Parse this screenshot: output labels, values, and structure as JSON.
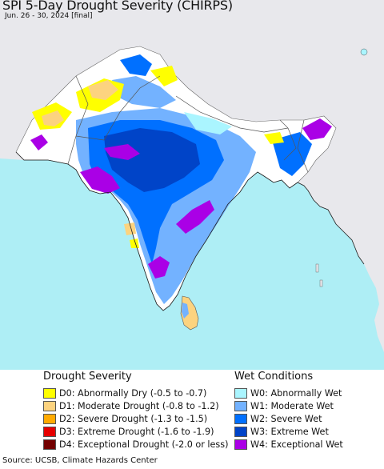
{
  "title": "SPI 5-Day Drought Severity (CHIRPS)",
  "subtitle": "Jun. 26 - 30, 2024 [final]",
  "colors": {
    "ocean": "#aeeef5",
    "land_neutral": "#ffffff",
    "land_outside": "#e8e8ec",
    "D0": "#ffff00",
    "D1": "#fcd37f",
    "D2": "#ffaa00",
    "D3": "#e60000",
    "D4": "#730000",
    "W0": "#aaf5ff",
    "W1": "#73b2ff",
    "W2": "#0070ff",
    "W3": "#0044c8",
    "W4": "#aa00e6"
  },
  "legend": {
    "drought": {
      "title": "Drought Severity",
      "items": [
        {
          "code": "D0",
          "label": "D0: Abnormally Dry (-0.5 to -0.7)",
          "color": "#ffff00"
        },
        {
          "code": "D1",
          "label": "D1: Moderate Drought (-0.8 to -1.2)",
          "color": "#fcd37f"
        },
        {
          "code": "D2",
          "label": "D2: Severe Drought (-1.3 to -1.5)",
          "color": "#ffaa00"
        },
        {
          "code": "D3",
          "label": "D3: Extreme Drought (-1.6 to -1.9)",
          "color": "#e60000"
        },
        {
          "code": "D4",
          "label": "D4: Exceptional Drought (-2.0 or less)",
          "color": "#730000"
        }
      ]
    },
    "wet": {
      "title": "Wet Conditions",
      "items": [
        {
          "code": "W0",
          "label": "W0: Abnormally Wet",
          "color": "#aaf5ff"
        },
        {
          "code": "W1",
          "label": "W1: Moderate Wet",
          "color": "#73b2ff"
        },
        {
          "code": "W2",
          "label": "W2: Severe Wet",
          "color": "#0070ff"
        },
        {
          "code": "W3",
          "label": "W3: Extreme Wet",
          "color": "#0044c8"
        },
        {
          "code": "W4",
          "label": "W4: Exceptional Wet",
          "color": "#aa00e6"
        }
      ]
    }
  },
  "source": "Source: UCSB, Climate Hazards Center"
}
